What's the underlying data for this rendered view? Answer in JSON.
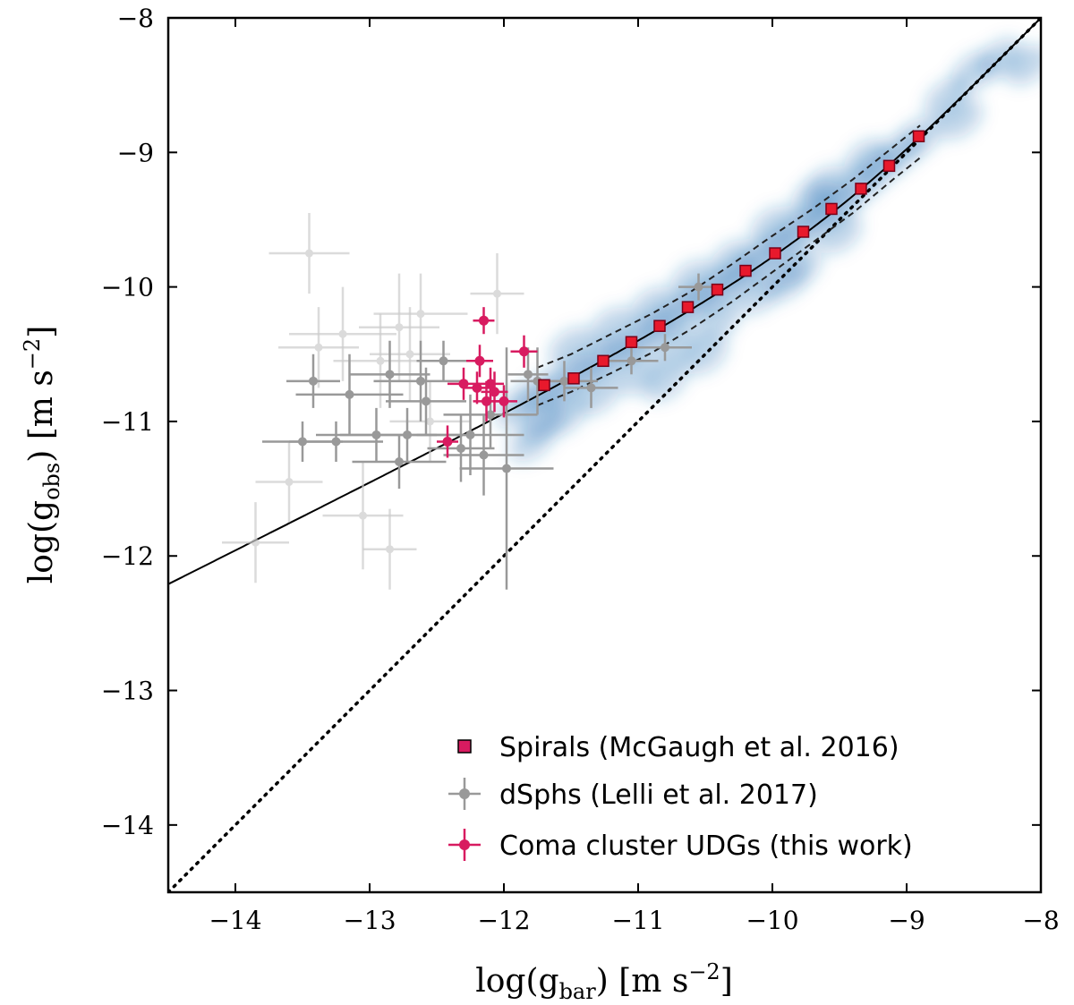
{
  "chart_data": {
    "type": "scatter",
    "xlabel": "log(g_bar) [m s^-2]",
    "ylabel": "log(g_obs) [m s^-2]",
    "xlim": [
      -14.5,
      -8
    ],
    "ylim": [
      -14.5,
      -8
    ],
    "xticks": [
      -14,
      -13,
      -12,
      -11,
      -10,
      -9,
      -8
    ],
    "yticks": [
      -14,
      -13,
      -12,
      -11,
      -10,
      -9,
      -8
    ],
    "xtick_labels": [
      "−14",
      "−13",
      "−12",
      "−11",
      "−10",
      "−9",
      "−8"
    ],
    "ytick_labels": [
      "−14",
      "−13",
      "−12",
      "−11",
      "−10",
      "−9",
      "−8"
    ],
    "grid": false,
    "legend_position": "bottom-right",
    "colors": {
      "spirals_fill": "#e8192c",
      "spirals_edge": "#7a0018",
      "dsph": "#999999",
      "dsph_faint": "#cccccc",
      "udg": "#d81b60",
      "density": "#2171b5"
    },
    "series": [
      {
        "name": "Spirals (McGaugh et al. 2016)",
        "marker": "square",
        "x": [
          -11.7,
          -11.48,
          -11.26,
          -11.05,
          -10.84,
          -10.63,
          -10.41,
          -10.2,
          -9.98,
          -9.77,
          -9.56,
          -9.34,
          -9.13,
          -8.91
        ],
        "y": [
          -10.73,
          -10.68,
          -10.55,
          -10.41,
          -10.29,
          -10.15,
          -10.02,
          -9.88,
          -9.75,
          -9.59,
          -9.42,
          -9.27,
          -9.1,
          -8.88
        ]
      },
      {
        "name": "dSphs (Lelli et al. 2017)",
        "marker": "circle",
        "x": [
          -13.5,
          -13.42,
          -13.25,
          -13.15,
          -12.95,
          -12.85,
          -12.78,
          -12.72,
          -12.62,
          -12.58,
          -12.45,
          -12.32,
          -12.25,
          -12.15,
          -12.1,
          -11.98,
          -11.82,
          -11.75,
          -11.55,
          -11.35,
          -11.05,
          -10.8,
          -10.55
        ],
        "y": [
          -11.15,
          -10.7,
          -11.15,
          -10.8,
          -11.1,
          -10.65,
          -11.3,
          -11.1,
          -10.7,
          -10.85,
          -10.55,
          -11.2,
          -11.1,
          -11.25,
          -10.95,
          -11.35,
          -10.65,
          -10.7,
          -10.7,
          -10.75,
          -10.55,
          -10.45,
          -10.0
        ],
        "xerr": [
          0.3,
          0.2,
          0.35,
          0.4,
          0.45,
          0.3,
          0.35,
          0.5,
          0.35,
          0.3,
          0.2,
          0.25,
          0.4,
          0.3,
          0.35,
          0.35,
          0.15,
          0.2,
          0.25,
          0.2,
          0.2,
          0.2,
          0.15
        ],
        "yerr": [
          0.15,
          0.2,
          0.15,
          0.3,
          0.2,
          0.25,
          0.2,
          0.2,
          0.3,
          0.25,
          0.15,
          0.25,
          0.3,
          0.3,
          0.25,
          0.9,
          0.2,
          0.25,
          0.15,
          0.15,
          0.1,
          0.1,
          0.1
        ]
      },
      {
        "name": "dSphs (faint)",
        "marker": "circle",
        "in_legend": false,
        "x": [
          -13.85,
          -13.6,
          -13.45,
          -13.38,
          -13.2,
          -13.05,
          -12.92,
          -12.85,
          -12.78,
          -12.7,
          -12.62,
          -12.55,
          -12.05
        ],
        "y": [
          -11.9,
          -11.45,
          -9.75,
          -10.45,
          -10.35,
          -11.7,
          -10.55,
          -11.95,
          -10.3,
          -10.5,
          -10.2,
          -11.0,
          -10.05
        ],
        "xerr": [
          0.25,
          0.25,
          0.3,
          0.3,
          0.4,
          0.3,
          0.35,
          0.2,
          0.3,
          0.3,
          0.35,
          0.3,
          0.2
        ],
        "yerr": [
          0.3,
          0.3,
          0.3,
          0.3,
          0.35,
          0.4,
          0.35,
          0.3,
          0.4,
          0.35,
          0.3,
          0.3,
          0.3
        ]
      },
      {
        "name": "Coma cluster UDGs (this work)",
        "marker": "circle",
        "x": [
          -12.42,
          -12.3,
          -12.2,
          -12.18,
          -12.15,
          -12.13,
          -12.1,
          -12.07,
          -12.0,
          -11.85
        ],
        "y": [
          -11.15,
          -10.72,
          -10.75,
          -10.55,
          -10.25,
          -10.85,
          -10.72,
          -10.78,
          -10.85,
          -10.48
        ],
        "xerr": [
          0.08,
          0.12,
          0.1,
          0.1,
          0.08,
          0.1,
          0.1,
          0.1,
          0.1,
          0.1
        ],
        "yerr": [
          0.12,
          0.12,
          0.12,
          0.12,
          0.1,
          0.15,
          0.12,
          0.15,
          0.12,
          0.12
        ]
      }
    ],
    "lines": [
      {
        "name": "RAR fit",
        "style": "solid",
        "function": "g_bar / (1 - exp(-sqrt(g_bar / 1.2e-10)))"
      },
      {
        "name": "1:1 line",
        "style": "dotted",
        "function": "g_obs = g_bar"
      },
      {
        "name": "scatter upper",
        "style": "dashed",
        "x": [
          -11.75,
          -11.5,
          -11.2,
          -10.9,
          -10.6,
          -10.3,
          -10.0,
          -9.7,
          -9.4,
          -9.1,
          -8.9
        ],
        "y": [
          -10.6,
          -10.5,
          -10.35,
          -10.2,
          -10.03,
          -9.83,
          -9.62,
          -9.42,
          -9.2,
          -8.96,
          -8.8
        ]
      },
      {
        "name": "scatter lower",
        "style": "dashed",
        "x": [
          -11.75,
          -11.5,
          -11.2,
          -10.9,
          -10.6,
          -10.3,
          -10.0,
          -9.7,
          -9.4,
          -9.1,
          -8.9
        ],
        "y": [
          -10.88,
          -10.78,
          -10.64,
          -10.49,
          -10.31,
          -10.11,
          -9.89,
          -9.67,
          -9.45,
          -9.2,
          -9.04
        ]
      }
    ],
    "density_points": [
      [
        -11.9,
        -10.9
      ],
      [
        -11.75,
        -10.8
      ],
      [
        -11.6,
        -10.75
      ],
      [
        -11.45,
        -10.65
      ],
      [
        -11.3,
        -10.55
      ],
      [
        -11.15,
        -10.5
      ],
      [
        -11.0,
        -10.4
      ],
      [
        -10.85,
        -10.3
      ],
      [
        -10.7,
        -10.2
      ],
      [
        -10.55,
        -10.1
      ],
      [
        -10.4,
        -10.02
      ],
      [
        -10.25,
        -9.92
      ],
      [
        -10.1,
        -9.8
      ],
      [
        -9.95,
        -9.7
      ],
      [
        -9.8,
        -9.58
      ],
      [
        -9.65,
        -9.48
      ],
      [
        -9.5,
        -9.38
      ],
      [
        -9.35,
        -9.25
      ],
      [
        -9.2,
        -9.12
      ],
      [
        -9.05,
        -9.0
      ],
      [
        -8.9,
        -8.88
      ],
      [
        -11.5,
        -10.45
      ],
      [
        -11.2,
        -10.3
      ],
      [
        -10.9,
        -10.15
      ],
      [
        -10.6,
        -9.95
      ],
      [
        -10.3,
        -9.8
      ],
      [
        -10.0,
        -9.55
      ],
      [
        -9.7,
        -9.35
      ],
      [
        -11.7,
        -11.0
      ],
      [
        -11.3,
        -10.8
      ],
      [
        -11.0,
        -10.65
      ],
      [
        -10.7,
        -10.45
      ],
      [
        -10.4,
        -10.25
      ],
      [
        -10.1,
        -10.05
      ],
      [
        -9.8,
        -9.85
      ],
      [
        -8.7,
        -8.6
      ],
      [
        -8.5,
        -8.4
      ],
      [
        -8.3,
        -8.3
      ],
      [
        -8.1,
        -8.35
      ],
      [
        -8.6,
        -8.75
      ],
      [
        -9.3,
        -9.05
      ],
      [
        -9.6,
        -9.25
      ],
      [
        -11.8,
        -11.15
      ],
      [
        -11.55,
        -10.95
      ],
      [
        -10.8,
        -10.7
      ],
      [
        -10.5,
        -10.5
      ],
      [
        -9.9,
        -9.95
      ],
      [
        -9.5,
        -9.6
      ]
    ],
    "legend": [
      {
        "label": "Spirals (McGaugh et al. 2016)",
        "marker": "square"
      },
      {
        "label": "dSphs (Lelli et al. 2017)",
        "marker": "circle-errorbar"
      },
      {
        "label": "Coma cluster UDGs (this work)",
        "marker": "circle-errorbar"
      }
    ]
  }
}
